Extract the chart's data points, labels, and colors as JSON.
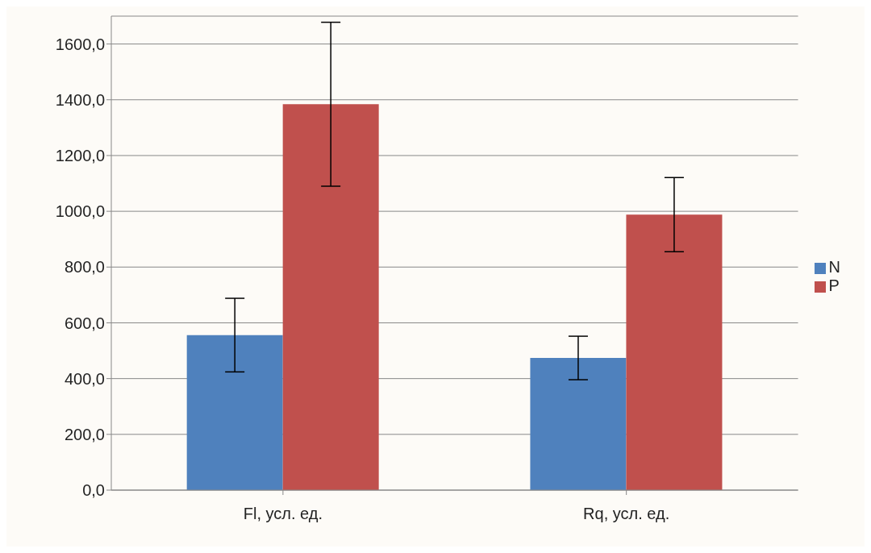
{
  "chart_data": {
    "type": "bar",
    "categories": [
      "Fl, усл. ед.",
      "Rq, усл. ед."
    ],
    "series": [
      {
        "name": "N",
        "color": "#4f81bd",
        "values": [
          556,
          474
        ],
        "errors": [
          132,
          78
        ]
      },
      {
        "name": "P",
        "color": "#c0504d",
        "values": [
          1384,
          988
        ],
        "errors": [
          294,
          133
        ]
      }
    ],
    "ylim": [
      0,
      1700
    ],
    "yticks": [
      {
        "value": 0,
        "label": "0,0"
      },
      {
        "value": 200,
        "label": "200,0"
      },
      {
        "value": 400,
        "label": "400,0"
      },
      {
        "value": 600,
        "label": "600,0"
      },
      {
        "value": 800,
        "label": "800,0"
      },
      {
        "value": 1000,
        "label": "1000,0"
      },
      {
        "value": 1200,
        "label": "1200,0"
      },
      {
        "value": 1400,
        "label": "1400,0"
      },
      {
        "value": 1600,
        "label": "1600,0"
      }
    ],
    "grid": "y",
    "legend": "right"
  }
}
